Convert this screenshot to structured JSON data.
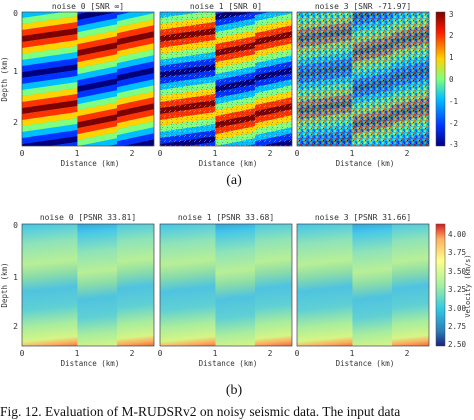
{
  "figure_a": {
    "panel_titles": [
      "noise 0 [SNR ∞]",
      "noise 1 [SNR 0]",
      "noise 3 [SNR -71.97]"
    ],
    "ylabel": "Depth (km)",
    "xlabel": "Distance (km)",
    "y_ticks": [
      "0",
      "1",
      "2"
    ],
    "x_ticks": [
      "0",
      "1",
      "2"
    ],
    "colorbar_ticks": [
      "3",
      "2",
      "1",
      "0",
      "-1",
      "-2",
      "-3"
    ],
    "label": "(a)",
    "colormap": [
      "#00007f",
      "#0033ff",
      "#00bfff",
      "#7fff7f",
      "#ffd300",
      "#ff3300",
      "#7f0000"
    ]
  },
  "figure_b": {
    "panel_titles": [
      "noise 0 [PSNR 33.81]",
      "noise 1 [PSNR 33.68]",
      "noise 3 [PSNR 31.66]"
    ],
    "ylabel": "Depth (km)",
    "xlabel": "Distance (km)",
    "y_ticks": [
      "0",
      "1",
      "2"
    ],
    "x_ticks": [
      "0",
      "1",
      "2"
    ],
    "colorbar_label": "Velocity (km/s)",
    "colorbar_ticks": [
      "4.00",
      "3.75",
      "3.50",
      "3.25",
      "3.00",
      "2.75",
      "2.50"
    ],
    "label": "(b)"
  },
  "caption": "Fig. 12.   Evaluation of M-RUDSRv2 on noisy seismic data. The input data"
}
